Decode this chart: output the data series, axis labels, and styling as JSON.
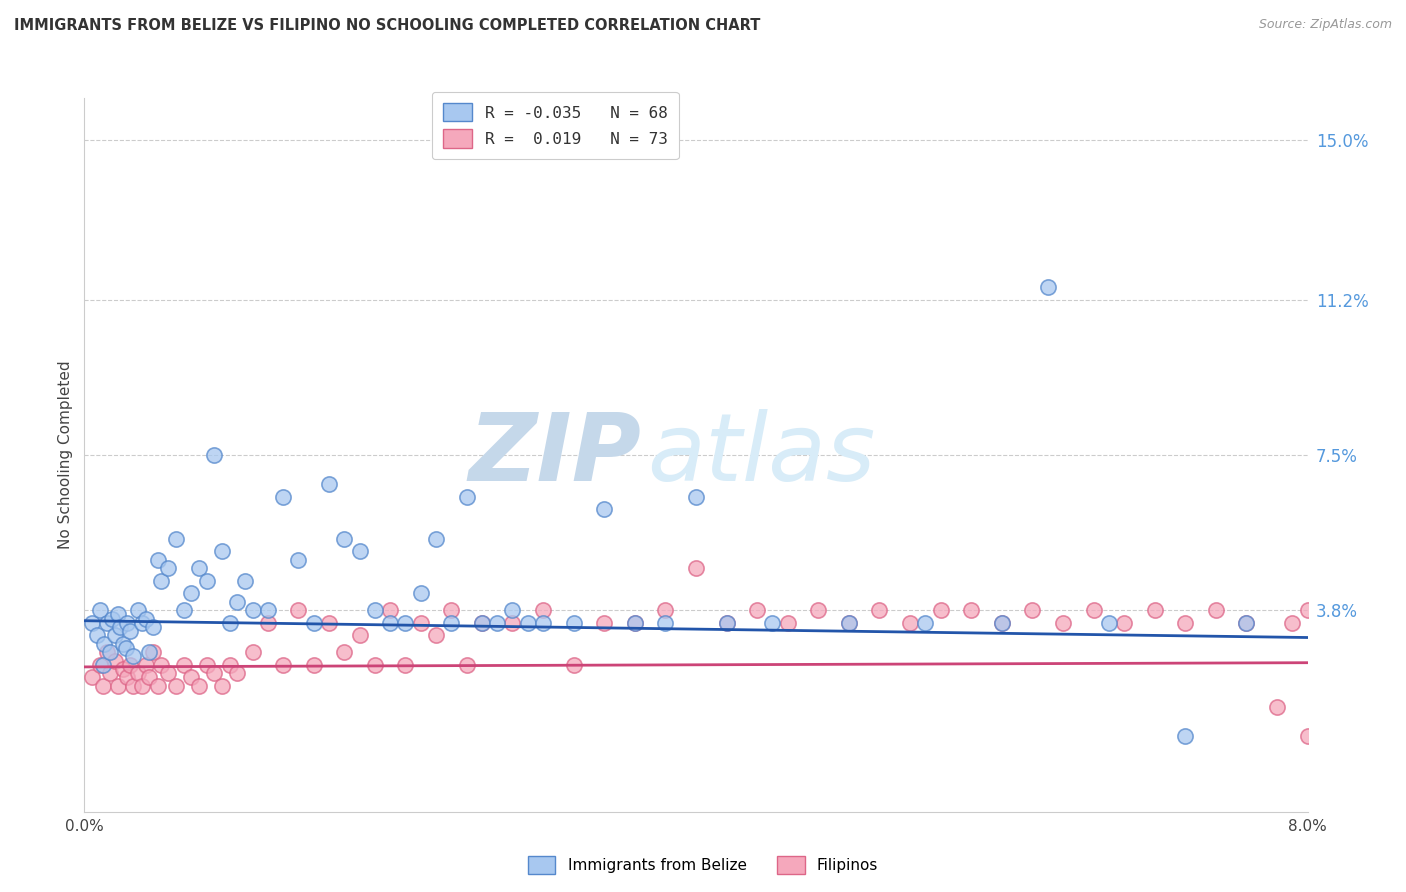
{
  "title": "IMMIGRANTS FROM BELIZE VS FILIPINO NO SCHOOLING COMPLETED CORRELATION CHART",
  "source": "Source: ZipAtlas.com",
  "ylabel": "No Schooling Completed",
  "ytick_values": [
    3.8,
    7.5,
    11.2,
    15.0
  ],
  "ytick_labels": [
    "3.8%",
    "7.5%",
    "11.2%",
    "15.0%"
  ],
  "xmin": 0.0,
  "xmax": 8.0,
  "ymin": -1.0,
  "ymax": 16.0,
  "series1_color": "#a8c8f0",
  "series2_color": "#f5a8bc",
  "series1_edge": "#5588cc",
  "series2_edge": "#dd6688",
  "trend1_color": "#2255aa",
  "trend2_color": "#cc4477",
  "trend1_y0": 3.55,
  "trend1_y1": 3.15,
  "trend2_y0": 2.45,
  "trend2_y1": 2.55,
  "watermark_zip_color": "#c8ddf0",
  "watermark_atlas_color": "#d8e8f5",
  "legend_label1": "R = -0.035   N = 68",
  "legend_label2": "R =  0.019   N = 73",
  "bottom_legend_label1": "Immigrants from Belize",
  "bottom_legend_label2": "Filipinos",
  "dot_size": 120,
  "dot_linewidth": 1.2,
  "belize_x": [
    0.05,
    0.08,
    0.1,
    0.12,
    0.13,
    0.15,
    0.17,
    0.18,
    0.2,
    0.22,
    0.23,
    0.25,
    0.27,
    0.28,
    0.3,
    0.32,
    0.35,
    0.38,
    0.4,
    0.42,
    0.45,
    0.48,
    0.5,
    0.55,
    0.6,
    0.65,
    0.7,
    0.75,
    0.8,
    0.85,
    0.9,
    0.95,
    1.0,
    1.05,
    1.1,
    1.2,
    1.3,
    1.4,
    1.5,
    1.6,
    1.7,
    1.8,
    1.9,
    2.0,
    2.1,
    2.2,
    2.3,
    2.4,
    2.5,
    2.6,
    2.7,
    2.8,
    2.9,
    3.0,
    3.2,
    3.4,
    3.6,
    3.8,
    4.0,
    4.2,
    4.5,
    5.0,
    5.5,
    6.0,
    6.3,
    6.7,
    7.2,
    7.6
  ],
  "belize_y": [
    3.5,
    3.2,
    3.8,
    2.5,
    3.0,
    3.5,
    2.8,
    3.6,
    3.2,
    3.7,
    3.4,
    3.0,
    2.9,
    3.5,
    3.3,
    2.7,
    3.8,
    3.5,
    3.6,
    2.8,
    3.4,
    5.0,
    4.5,
    4.8,
    5.5,
    3.8,
    4.2,
    4.8,
    4.5,
    7.5,
    5.2,
    3.5,
    4.0,
    4.5,
    3.8,
    3.8,
    6.5,
    5.0,
    3.5,
    6.8,
    5.5,
    5.2,
    3.8,
    3.5,
    3.5,
    4.2,
    5.5,
    3.5,
    6.5,
    3.5,
    3.5,
    3.8,
    3.5,
    3.5,
    3.5,
    6.2,
    3.5,
    3.5,
    6.5,
    3.5,
    3.5,
    3.5,
    3.5,
    3.5,
    11.5,
    3.5,
    0.8,
    3.5
  ],
  "filipino_x": [
    0.05,
    0.1,
    0.12,
    0.15,
    0.17,
    0.2,
    0.22,
    0.25,
    0.28,
    0.3,
    0.32,
    0.35,
    0.38,
    0.4,
    0.42,
    0.45,
    0.48,
    0.5,
    0.55,
    0.6,
    0.65,
    0.7,
    0.75,
    0.8,
    0.85,
    0.9,
    0.95,
    1.0,
    1.1,
    1.2,
    1.3,
    1.4,
    1.5,
    1.6,
    1.7,
    1.8,
    1.9,
    2.0,
    2.1,
    2.2,
    2.3,
    2.4,
    2.5,
    2.6,
    2.8,
    3.0,
    3.2,
    3.4,
    3.6,
    3.8,
    4.0,
    4.2,
    4.4,
    4.6,
    4.8,
    5.0,
    5.2,
    5.4,
    5.6,
    5.8,
    6.0,
    6.2,
    6.4,
    6.6,
    6.8,
    7.0,
    7.2,
    7.4,
    7.6,
    7.8,
    7.9,
    8.0,
    8.0
  ],
  "filipino_y": [
    2.2,
    2.5,
    2.0,
    2.8,
    2.3,
    2.6,
    2.0,
    2.4,
    2.2,
    2.5,
    2.0,
    2.3,
    2.0,
    2.5,
    2.2,
    2.8,
    2.0,
    2.5,
    2.3,
    2.0,
    2.5,
    2.2,
    2.0,
    2.5,
    2.3,
    2.0,
    2.5,
    2.3,
    2.8,
    3.5,
    2.5,
    3.8,
    2.5,
    3.5,
    2.8,
    3.2,
    2.5,
    3.8,
    2.5,
    3.5,
    3.2,
    3.8,
    2.5,
    3.5,
    3.5,
    3.8,
    2.5,
    3.5,
    3.5,
    3.8,
    4.8,
    3.5,
    3.8,
    3.5,
    3.8,
    3.5,
    3.8,
    3.5,
    3.8,
    3.8,
    3.5,
    3.8,
    3.5,
    3.8,
    3.5,
    3.8,
    3.5,
    3.8,
    3.5,
    1.5,
    3.5,
    3.8,
    0.8
  ]
}
